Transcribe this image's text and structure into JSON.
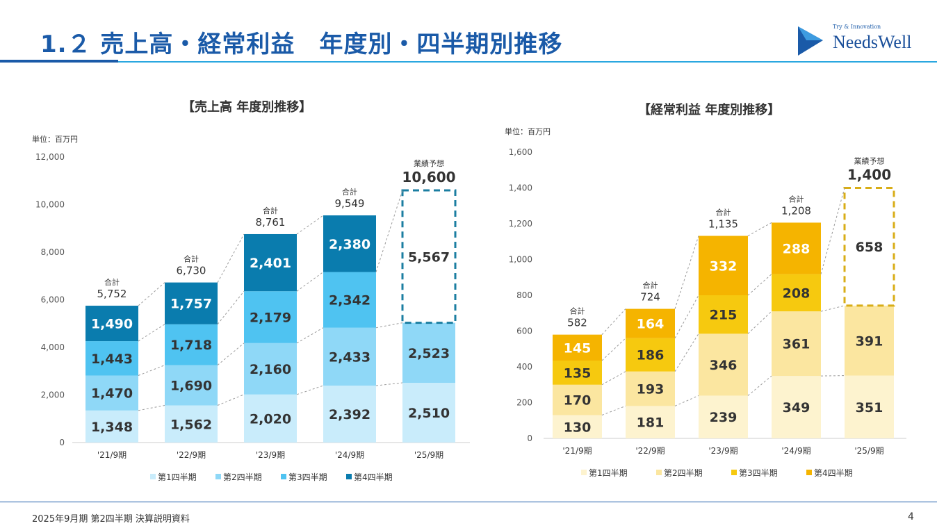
{
  "page": {
    "title": "1.２ 売上高・経常利益　年度別・四半期別推移",
    "footer": "2025年9月期 第2四半期 決算説明資料",
    "page_number": "4"
  },
  "logo": {
    "tagline": "Try & Innovation",
    "name": "NeedsWell"
  },
  "colors": {
    "brand_blue": "#1a5aa8",
    "sales": [
      "#c9ecfb",
      "#8fd8f7",
      "#4fc3f1",
      "#0a7cae"
    ],
    "profit": [
      "#fdf3cf",
      "#fbe6a0",
      "#f6c90f",
      "#f5b400"
    ],
    "forecast_sales": "#1b7ea1",
    "forecast_profit": "#d8ad17"
  },
  "chart_data": [
    {
      "type": "bar",
      "stacked": true,
      "title": "【売上高 年度別推移】",
      "unit_label": "単位：百万円",
      "categories": [
        "'21/9期",
        "'22/9期",
        "'23/9期",
        "'24/9期",
        "'25/9期"
      ],
      "series": [
        {
          "name": "第1四半期",
          "values": [
            1348,
            1562,
            2020,
            2392,
            2510
          ]
        },
        {
          "name": "第2四半期",
          "values": [
            1470,
            1690,
            2160,
            2433,
            2523
          ]
        },
        {
          "name": "第3四半期",
          "values": [
            1443,
            1718,
            2179,
            2342,
            null
          ]
        },
        {
          "name": "第4四半期",
          "values": [
            1490,
            1757,
            2401,
            2380,
            null
          ]
        }
      ],
      "forecast": {
        "label": "業績予想",
        "total": "10,600",
        "remainder": 5567
      },
      "total_label": "合計",
      "totals": [
        "5,752",
        "6,730",
        "8,761",
        "9,549"
      ],
      "ylim": [
        0,
        12000
      ],
      "yticks": [
        0,
        2000,
        4000,
        6000,
        8000,
        10000,
        12000
      ],
      "ytick_labels": [
        "0",
        "2,000",
        "4,000",
        "6,000",
        "8,000",
        "10,000",
        "12,000"
      ],
      "legend": [
        "第1四半期",
        "第2四半期",
        "第3四半期",
        "第4四半期"
      ]
    },
    {
      "type": "bar",
      "stacked": true,
      "title": "【経常利益 年度別推移】",
      "unit_label": "単位：百万円",
      "categories": [
        "'21/9期",
        "'22/9期",
        "'23/9期",
        "'24/9期",
        "'25/9期"
      ],
      "series": [
        {
          "name": "第1四半期",
          "values": [
            130,
            181,
            239,
            349,
            351
          ]
        },
        {
          "name": "第2四半期",
          "values": [
            170,
            193,
            346,
            361,
            391
          ]
        },
        {
          "name": "第3四半期",
          "values": [
            135,
            186,
            215,
            208,
            null
          ]
        },
        {
          "name": "第4四半期",
          "values": [
            145,
            164,
            332,
            288,
            null
          ]
        }
      ],
      "forecast": {
        "label": "業績予想",
        "total": "1,400",
        "remainder": 658
      },
      "total_label": "合計",
      "totals": [
        "582",
        "724",
        "1,135",
        "1,208"
      ],
      "ylim": [
        0,
        1600
      ],
      "yticks": [
        0,
        200,
        400,
        600,
        800,
        1000,
        1200,
        1400,
        1600
      ],
      "ytick_labels": [
        "0",
        "200",
        "400",
        "600",
        "800",
        "1,000",
        "1,200",
        "1,400",
        "1,600"
      ],
      "legend": [
        "第1四半期",
        "第2四半期",
        "第3四半期",
        "第4四半期"
      ]
    }
  ]
}
